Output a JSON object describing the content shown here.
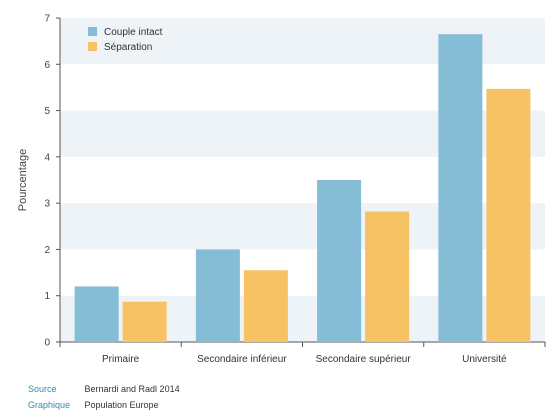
{
  "chart_data": {
    "type": "bar",
    "categories": [
      "Primaire",
      "Secondaire inférieur",
      "Secondaire supérieur",
      "Université"
    ],
    "series": [
      {
        "name": "Couple intact",
        "values": [
          1.2,
          2.0,
          3.5,
          6.65
        ],
        "color": "#85bcd6"
      },
      {
        "name": "Séparation",
        "values": [
          0.87,
          1.55,
          2.82,
          5.47
        ],
        "color": "#f7c264"
      }
    ],
    "ylabel": "Pourcentage",
    "xlabel": "",
    "ylim": [
      0,
      7
    ],
    "yticks": [
      "0",
      "1",
      "2",
      "3",
      "4",
      "5",
      "6",
      "7"
    ],
    "grid": "horizontal bands",
    "legend_placement": "top-left",
    "band_color": "#eef3f8"
  },
  "footer": {
    "source_key": "Source",
    "source_value": "Bernardi and Radl 2014",
    "graphic_key": "Graphique",
    "graphic_value": "Population Europe"
  }
}
